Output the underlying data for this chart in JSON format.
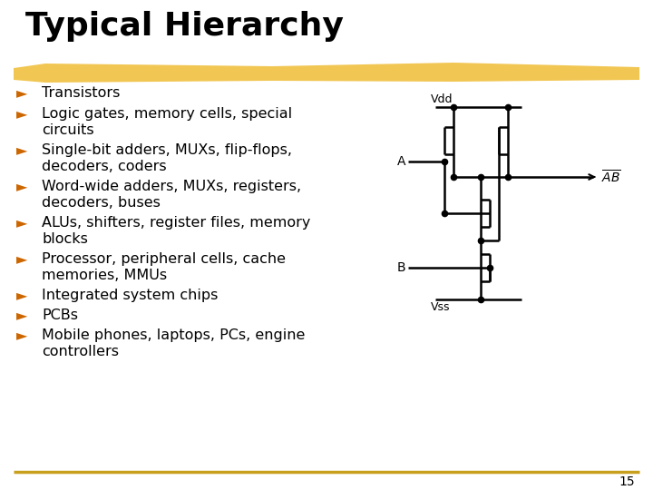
{
  "title": "Typical Hierarchy",
  "title_fontsize": 26,
  "background_color": "#ffffff",
  "highlight_color": "#f0c040",
  "bottom_line_color": "#c8a020",
  "bullet_color": "#cc6600",
  "text_color": "#000000",
  "bullet_char": "►",
  "bullets": [
    [
      "Transistors"
    ],
    [
      "Logic gates, memory cells, special",
      "circuits"
    ],
    [
      "Single-bit adders, MUXs, flip-flops,",
      "decoders, coders"
    ],
    [
      "Word-wide adders, MUXs, registers,",
      "decoders, buses"
    ],
    [
      "ALUs, shifters, register files, memory",
      "blocks"
    ],
    [
      "Processor, peripheral cells, cache",
      "memories, MMUs"
    ],
    [
      "Integrated system chips"
    ],
    [
      "PCBs"
    ],
    [
      "Mobile phones, laptops, PCs, engine",
      "controllers"
    ]
  ],
  "bullet_fontsize": 11.5,
  "page_number": "15",
  "circuit_color": "#000000"
}
